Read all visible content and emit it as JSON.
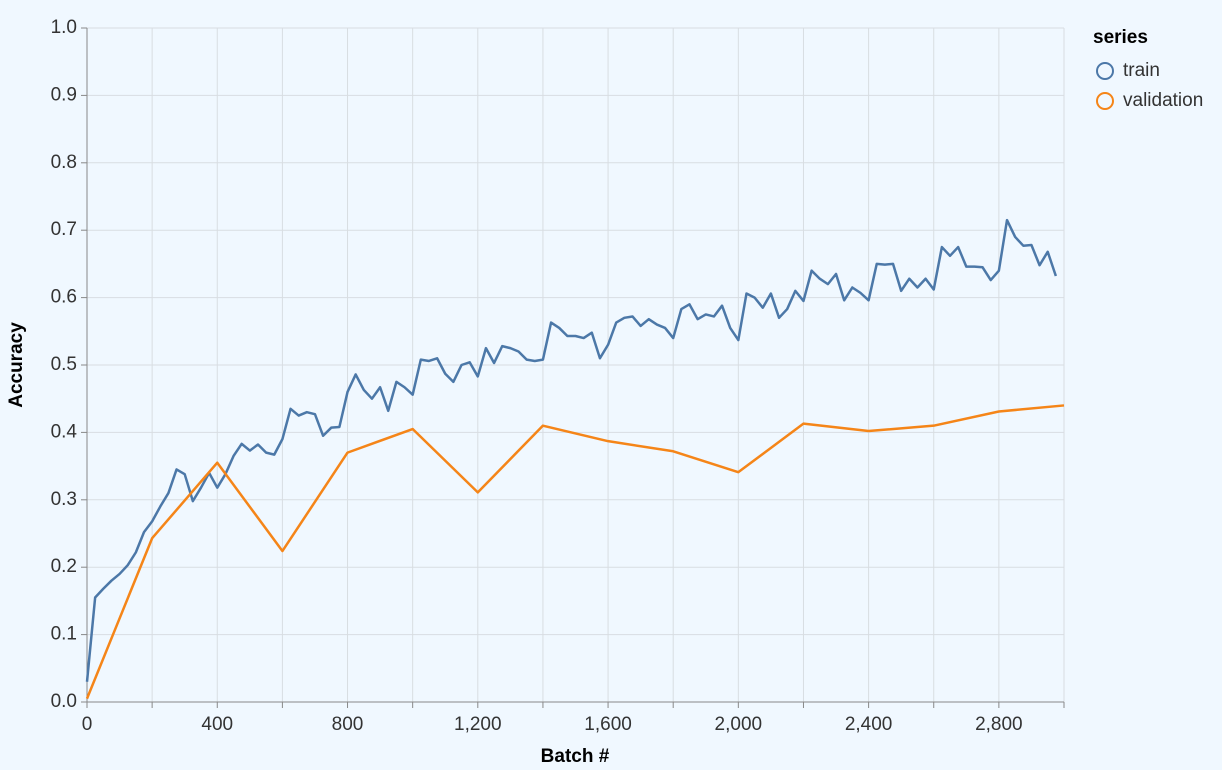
{
  "chart_data": {
    "type": "line",
    "x_label": "Batch #",
    "y_label": "Accuracy",
    "legend_title": "series",
    "legend_position": "right",
    "grid": true,
    "xlim": [
      0,
      3000
    ],
    "xticks": [
      0,
      400,
      800,
      {
        "value": 1200,
        "label": "1,200"
      },
      {
        "value": 1600,
        "label": "1,600"
      },
      {
        "value": 2000,
        "label": "2,000"
      },
      {
        "value": 2400,
        "label": "2,400"
      },
      {
        "value": 2800,
        "label": "2,800"
      }
    ],
    "xminorticks": [
      200,
      600,
      1000,
      1400,
      1800,
      2200,
      2600,
      3000
    ],
    "ylim": [
      0,
      1
    ],
    "yticks": [
      {
        "value": 0,
        "label": "0.0"
      },
      0.1,
      0.2,
      0.3,
      0.4,
      0.5,
      0.6,
      0.7,
      0.8,
      0.9,
      {
        "value": 1,
        "label": "1.0"
      }
    ],
    "series": [
      {
        "name": "train",
        "color": "#4c78a8",
        "x": [
          0,
          25,
          50,
          75,
          100,
          125,
          150,
          175,
          200,
          225,
          250,
          275,
          300,
          325,
          350,
          375,
          400,
          425,
          450,
          475,
          500,
          525,
          550,
          575,
          600,
          625,
          650,
          675,
          700,
          725,
          750,
          775,
          800,
          825,
          850,
          875,
          900,
          925,
          950,
          975,
          1000,
          1025,
          1050,
          1075,
          1100,
          1125,
          1150,
          1175,
          1200,
          1225,
          1250,
          1275,
          1300,
          1325,
          1350,
          1375,
          1400,
          1425,
          1450,
          1475,
          1500,
          1525,
          1550,
          1575,
          1600,
          1625,
          1650,
          1675,
          1700,
          1725,
          1750,
          1775,
          1800,
          1825,
          1850,
          1875,
          1900,
          1925,
          1950,
          1975,
          2000,
          2025,
          2050,
          2075,
          2100,
          2125,
          2150,
          2175,
          2200,
          2225,
          2250,
          2275,
          2300,
          2325,
          2350,
          2375,
          2400,
          2425,
          2450,
          2475,
          2500,
          2525,
          2550,
          2575,
          2600,
          2625,
          2650,
          2675,
          2700,
          2725,
          2750,
          2775,
          2800,
          2825,
          2850,
          2875,
          2900,
          2925,
          2950,
          2975
        ],
        "values": [
          0.03,
          0.155,
          0.168,
          0.18,
          0.19,
          0.203,
          0.222,
          0.252,
          0.268,
          0.29,
          0.31,
          0.345,
          0.338,
          0.298,
          0.318,
          0.34,
          0.318,
          0.338,
          0.365,
          0.383,
          0.373,
          0.382,
          0.37,
          0.367,
          0.39,
          0.435,
          0.425,
          0.43,
          0.427,
          0.395,
          0.407,
          0.408,
          0.46,
          0.486,
          0.463,
          0.45,
          0.467,
          0.432,
          0.475,
          0.467,
          0.456,
          0.508,
          0.506,
          0.51,
          0.487,
          0.475,
          0.5,
          0.504,
          0.483,
          0.525,
          0.503,
          0.528,
          0.525,
          0.52,
          0.508,
          0.506,
          0.508,
          0.563,
          0.555,
          0.543,
          0.543,
          0.54,
          0.548,
          0.51,
          0.53,
          0.563,
          0.57,
          0.572,
          0.558,
          0.568,
          0.56,
          0.555,
          0.54,
          0.583,
          0.59,
          0.568,
          0.575,
          0.572,
          0.588,
          0.555,
          0.537,
          0.606,
          0.6,
          0.585,
          0.606,
          0.57,
          0.583,
          0.61,
          0.595,
          0.64,
          0.628,
          0.62,
          0.635,
          0.596,
          0.615,
          0.607,
          0.596,
          0.65,
          0.649,
          0.65,
          0.61,
          0.628,
          0.615,
          0.628,
          0.612,
          0.675,
          0.662,
          0.675,
          0.646,
          0.646,
          0.645,
          0.626,
          0.64,
          0.715,
          0.69,
          0.677,
          0.678,
          0.648,
          0.668,
          0.632
        ]
      },
      {
        "name": "validation",
        "color": "#f58518",
        "x": [
          0,
          200,
          400,
          600,
          800,
          1000,
          1200,
          1400,
          1600,
          1800,
          2000,
          2200,
          2400,
          2600,
          2800,
          3000
        ],
        "values": [
          0.005,
          0.243,
          0.355,
          0.224,
          0.37,
          0.405,
          0.311,
          0.41,
          0.387,
          0.372,
          0.341,
          0.413,
          0.402,
          0.41,
          0.431,
          0.44
        ]
      }
    ]
  }
}
